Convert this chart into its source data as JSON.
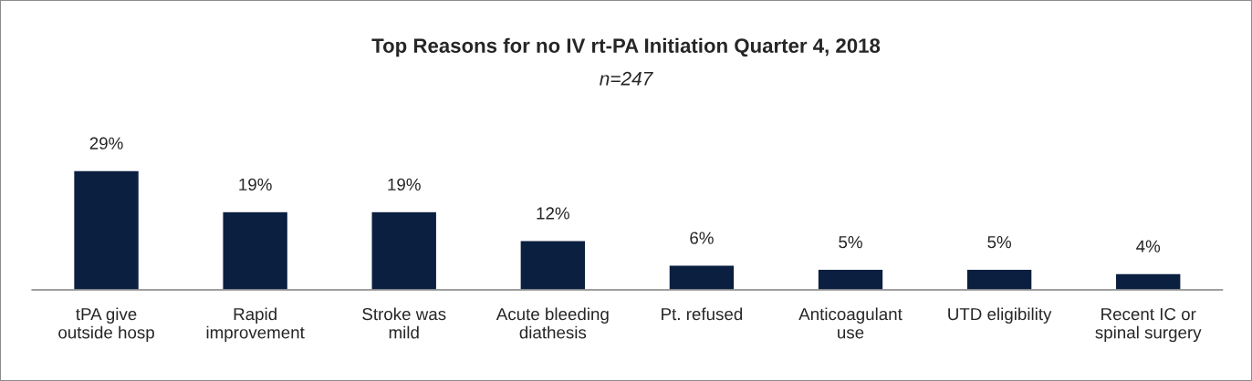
{
  "chart_data": {
    "type": "bar",
    "title": "Top Reasons for no IV rt-PA Initiation Quarter 4, 2018",
    "subtitle": "n=247",
    "categories": [
      "tPA give\noutside hosp",
      "Rapid\nimprovement",
      "Stroke was\nmild",
      "Acute bleeding\ndiathesis",
      "Pt. refused",
      "Anticoagulant\nuse",
      "UTD eligibility",
      "Recent IC or\nspinal surgery"
    ],
    "values": [
      29,
      19,
      19,
      12,
      6,
      5,
      5,
      4
    ],
    "value_labels": [
      "29%",
      "19%",
      "19%",
      "12%",
      "6%",
      "5%",
      "5%",
      "4%"
    ],
    "color": "#0b1f40",
    "grid": false,
    "legend": false
  }
}
